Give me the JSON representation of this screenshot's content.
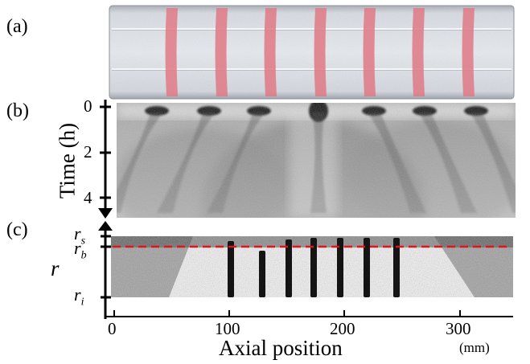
{
  "figure": {
    "panel_labels": [
      "(a)",
      "(b)",
      "(c)"
    ],
    "panel_b": {
      "axis_title": "Time (h)",
      "ticks": [
        "0",
        "2",
        "4"
      ]
    },
    "panel_c": {
      "axis_symbol": "r",
      "levels": [
        {
          "main": "r",
          "sub": "s"
        },
        {
          "main": "r",
          "sub": "b"
        },
        {
          "main": "r",
          "sub": "i"
        }
      ]
    },
    "x_axis": {
      "title": "Axial position",
      "unit": "(mm)",
      "ticks": [
        "0",
        "100",
        "200",
        "300"
      ]
    },
    "colors": {
      "band_red": "#e07a86",
      "dashed_line": "#e01515",
      "photo_bg": "#cfd3da"
    }
  }
}
